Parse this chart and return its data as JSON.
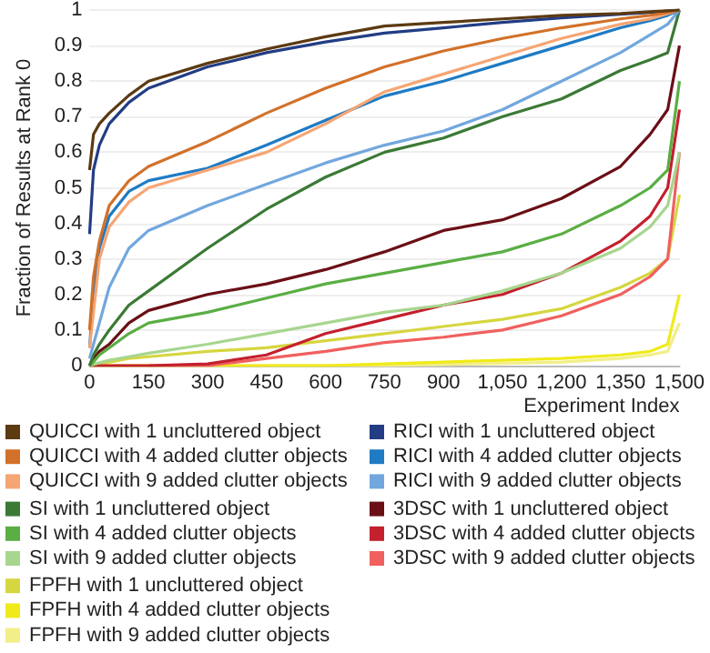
{
  "chart_data": {
    "type": "line",
    "xlabel": "Experiment Index",
    "ylabel": "Fraction of Results at Rank 0",
    "x": [
      0,
      10,
      25,
      50,
      100,
      150,
      300,
      450,
      600,
      750,
      900,
      1050,
      1200,
      1350,
      1425,
      1470,
      1500
    ],
    "xlim": [
      0,
      1500
    ],
    "xticks": [
      0,
      150,
      300,
      450,
      600,
      750,
      900,
      {
        "value": 1050,
        "label": "1,050"
      },
      {
        "value": 1200,
        "label": "1,200"
      },
      {
        "value": 1350,
        "label": "1,350"
      },
      {
        "value": 1500,
        "label": "1,500"
      }
    ],
    "ylim": [
      0,
      1
    ],
    "yticks": [
      0,
      0.1,
      0.2,
      0.3,
      0.4,
      0.5,
      0.6,
      0.7,
      0.8,
      0.9,
      1
    ],
    "grid": "y",
    "legend": "bottom",
    "marker": "none",
    "line_style": "solid",
    "series": [
      {
        "name": "QUICCI with 1 uncluttered object",
        "color": "#5c3a12",
        "values": [
          0.55,
          0.65,
          0.68,
          0.71,
          0.76,
          0.8,
          0.85,
          0.89,
          0.925,
          0.955,
          0.965,
          0.975,
          0.985,
          0.99,
          0.995,
          0.998,
          1
        ]
      },
      {
        "name": "QUICCI with 4 added clutter objects",
        "color": "#d2712a",
        "values": [
          0.1,
          0.25,
          0.35,
          0.45,
          0.52,
          0.56,
          0.63,
          0.71,
          0.78,
          0.84,
          0.885,
          0.92,
          0.95,
          0.975,
          0.985,
          0.993,
          1
        ]
      },
      {
        "name": "QUICCI with 9 added clutter objects",
        "color": "#f6a574",
        "values": [
          0.05,
          0.15,
          0.3,
          0.39,
          0.46,
          0.5,
          0.55,
          0.6,
          0.68,
          0.77,
          0.82,
          0.87,
          0.92,
          0.96,
          0.975,
          0.99,
          1
        ]
      },
      {
        "name": "RICI with 1 uncluttered object",
        "color": "#223d85",
        "values": [
          0.37,
          0.55,
          0.62,
          0.68,
          0.74,
          0.78,
          0.84,
          0.88,
          0.91,
          0.935,
          0.95,
          0.965,
          0.978,
          0.988,
          0.993,
          0.997,
          1
        ]
      },
      {
        "name": "RICI with 4 added clutter objects",
        "color": "#1e7bc4",
        "values": [
          0.05,
          0.2,
          0.33,
          0.42,
          0.49,
          0.52,
          0.555,
          0.62,
          0.69,
          0.758,
          0.8,
          0.85,
          0.9,
          0.95,
          0.97,
          0.985,
          1
        ]
      },
      {
        "name": "RICI with 9 added clutter objects",
        "color": "#72a7de",
        "values": [
          0.02,
          0.06,
          0.12,
          0.22,
          0.33,
          0.38,
          0.45,
          0.51,
          0.57,
          0.62,
          0.66,
          0.72,
          0.8,
          0.88,
          0.93,
          0.96,
          1
        ]
      },
      {
        "name": "SI with 1 uncluttered object",
        "color": "#3b7a35",
        "values": [
          0,
          0.03,
          0.06,
          0.1,
          0.17,
          0.21,
          0.33,
          0.44,
          0.53,
          0.6,
          0.64,
          0.7,
          0.75,
          0.83,
          0.86,
          0.88,
          1
        ]
      },
      {
        "name": "SI with 4 added clutter objects",
        "color": "#5aae43",
        "values": [
          0,
          0.01,
          0.03,
          0.05,
          0.09,
          0.12,
          0.15,
          0.19,
          0.23,
          0.26,
          0.29,
          0.32,
          0.37,
          0.45,
          0.5,
          0.55,
          0.8
        ]
      },
      {
        "name": "SI with 9 added clutter objects",
        "color": "#a7d68f",
        "values": [
          0,
          0.003,
          0.008,
          0.015,
          0.025,
          0.035,
          0.06,
          0.09,
          0.12,
          0.15,
          0.17,
          0.21,
          0.26,
          0.33,
          0.39,
          0.45,
          0.6
        ]
      },
      {
        "name": "3DSC with 1 uncluttered object",
        "color": "#6b0f16",
        "values": [
          0,
          0.02,
          0.04,
          0.06,
          0.12,
          0.155,
          0.2,
          0.23,
          0.27,
          0.32,
          0.38,
          0.41,
          0.47,
          0.56,
          0.65,
          0.72,
          0.9
        ]
      },
      {
        "name": "3DSC with 4 added clutter objects",
        "color": "#c4202e",
        "values": [
          0,
          0,
          0,
          0,
          0,
          0,
          0.005,
          0.03,
          0.09,
          0.13,
          0.17,
          0.2,
          0.26,
          0.35,
          0.42,
          0.5,
          0.72
        ]
      },
      {
        "name": "3DSC with 9 added clutter objects",
        "color": "#f0605f",
        "values": [
          null,
          null,
          null,
          null,
          null,
          0,
          0,
          0.02,
          0.04,
          0.065,
          0.08,
          0.1,
          0.14,
          0.2,
          0.25,
          0.3,
          0.6
        ]
      },
      {
        "name": "FPFH with 1 uncluttered object",
        "color": "#d6d640",
        "values": [
          0,
          0.002,
          0.005,
          0.01,
          0.02,
          0.025,
          0.04,
          0.05,
          0.07,
          0.09,
          0.11,
          0.13,
          0.16,
          0.22,
          0.26,
          0.3,
          0.48
        ]
      },
      {
        "name": "FPFH with 4 added clutter objects",
        "color": "#f0ea1a",
        "values": [
          0,
          0,
          0,
          0,
          0,
          0,
          0,
          0,
          0,
          0.005,
          0.01,
          0.015,
          0.02,
          0.03,
          0.04,
          0.06,
          0.2
        ]
      },
      {
        "name": "FPFH with 9 added clutter objects",
        "color": "#f2ee88",
        "values": [
          0,
          0,
          0,
          0,
          0,
          0,
          0,
          0,
          0,
          0,
          0.003,
          0.006,
          0.01,
          0.02,
          0.03,
          0.04,
          0.12
        ]
      }
    ]
  }
}
